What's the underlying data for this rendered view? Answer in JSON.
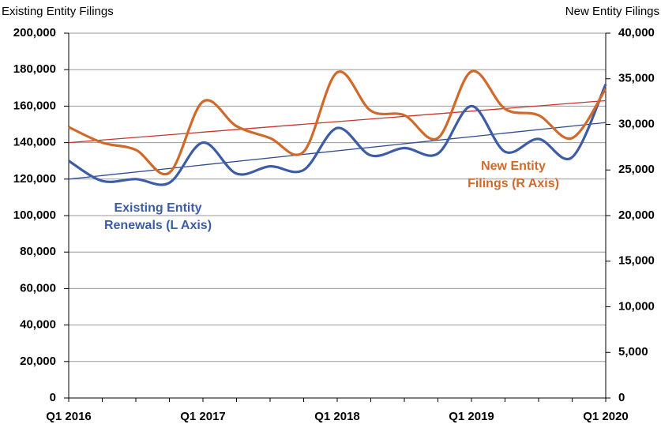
{
  "chart_data": {
    "type": "line",
    "y_axis_label": "Existing Entity Filings",
    "y2_axis_label": "New Entity Filings",
    "categories": [
      "Q1 2016",
      null,
      null,
      null,
      "Q1 2017",
      null,
      null,
      null,
      "Q1 2018",
      null,
      null,
      null,
      "Q1 2019",
      null,
      null,
      null,
      "Q1 2020"
    ],
    "series": [
      {
        "color": "#3d5ca6",
        "axis": "y",
        "values": [
          130000,
          119000,
          120000,
          118000,
          140000,
          123000,
          127000,
          125000,
          148000,
          133000,
          137000,
          134000,
          160000,
          135000,
          142000,
          132000,
          172000
        ]
      },
      {
        "color": "#d0692a",
        "axis": "y2",
        "values": [
          29700,
          28000,
          27200,
          24700,
          32500,
          29800,
          28500,
          27000,
          35700,
          31500,
          31000,
          28500,
          35800,
          31700,
          31000,
          28500,
          33900
        ]
      }
    ],
    "trendlines": [
      {
        "color": "#2f4c8f",
        "axis": "y",
        "values": [
          120000,
          151000
        ]
      },
      {
        "color": "#c8352a",
        "axis": "y2",
        "values": [
          28000,
          32600
        ]
      }
    ],
    "annotations": [
      {
        "lines": [
          "Existing Entity",
          "Renewals (L Axis)"
        ],
        "color": "#3d5ca6"
      },
      {
        "lines": [
          "New Entity",
          "Filings (R Axis)"
        ],
        "color": "#d0692a"
      }
    ],
    "ylim": [
      0,
      200000
    ],
    "yticks": [
      0,
      {
        "value": 20000,
        "label": "20,000"
      },
      {
        "value": 40000,
        "label": "40,000"
      },
      {
        "value": 60000,
        "label": "60,000"
      },
      {
        "value": 80000,
        "label": "80,000"
      },
      {
        "value": 100000,
        "label": "100,000"
      },
      {
        "value": 120000,
        "label": "120,000"
      },
      {
        "value": 140000,
        "label": "140,000"
      },
      {
        "value": 160000,
        "label": "160,000"
      },
      {
        "value": 180000,
        "label": "180,000"
      },
      {
        "value": 200000,
        "label": "200,000"
      }
    ],
    "y2lim": [
      0,
      40000
    ],
    "y2ticks": [
      0,
      {
        "value": 5000,
        "label": "5,000"
      },
      {
        "value": 10000,
        "label": "10,000"
      },
      {
        "value": 15000,
        "label": "15,000"
      },
      {
        "value": 20000,
        "label": "20,000"
      },
      {
        "value": 25000,
        "label": "25,000"
      },
      {
        "value": 30000,
        "label": "30,000"
      },
      {
        "value": 35000,
        "label": "35,000"
      },
      {
        "value": 40000,
        "label": "40,000"
      }
    ],
    "grid": true
  }
}
